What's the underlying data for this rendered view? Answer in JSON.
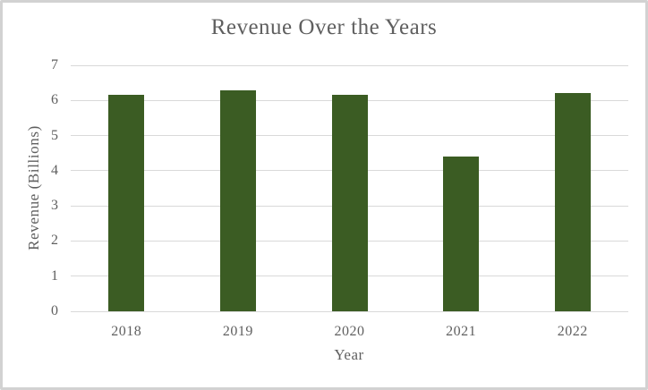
{
  "frame": {
    "border_color": "#d2d2d2",
    "background": "#ffffff"
  },
  "chart_data": {
    "type": "bar",
    "title": "Revenue Over the Years",
    "xlabel": "Year",
    "ylabel": "Revenue (Billions)",
    "categories": [
      "2018",
      "2019",
      "2020",
      "2021",
      "2022"
    ],
    "values": [
      6.17,
      6.3,
      6.15,
      4.4,
      6.22
    ],
    "ylim": [
      0,
      7
    ],
    "yticks": [
      0,
      1,
      2,
      3,
      4,
      5,
      6,
      7
    ],
    "grid": true,
    "legend_position": "none",
    "bar_color": "#3b5c23",
    "text_color": "#5f5f5f",
    "gridline_color": "#d9d9d9",
    "axisline_color": "#d9d9d9"
  }
}
